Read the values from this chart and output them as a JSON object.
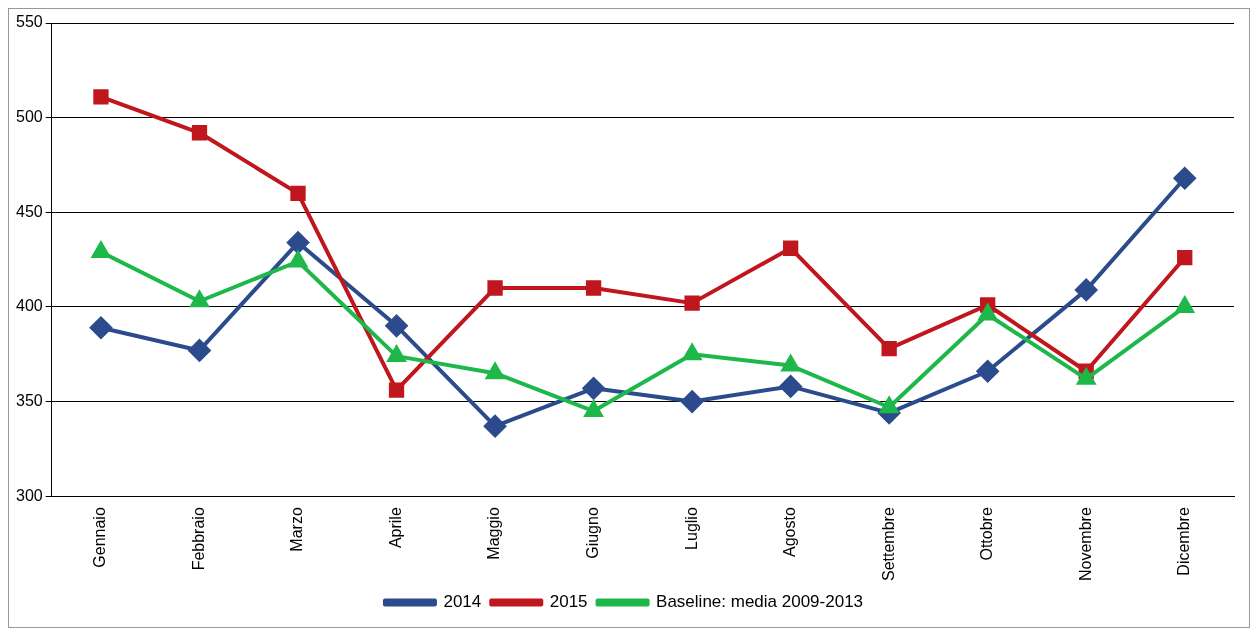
{
  "chart_data": {
    "type": "line",
    "categories": [
      "Gennaio",
      "Febbraio",
      "Marzo",
      "Aprile",
      "Maggio",
      "Giugno",
      "Luglio",
      "Agosto",
      "Settembre",
      "Ottobre",
      "Novembre",
      "Dicembre"
    ],
    "series": [
      {
        "name": "2014",
        "color": "#2b4b8c",
        "marker": "diamond",
        "values": [
          389,
          377,
          434,
          390,
          337,
          357,
          350,
          358,
          344,
          366,
          409,
          468
        ]
      },
      {
        "name": "2015",
        "color": "#c0161e",
        "marker": "square",
        "values": [
          511,
          492,
          460,
          356,
          410,
          410,
          402,
          431,
          378,
          401,
          366,
          426
        ]
      },
      {
        "name": "Baseline: media 2009-2013",
        "color": "#1eb84a",
        "marker": "triangle",
        "values": [
          429,
          403,
          424,
          374,
          365,
          345,
          375,
          369,
          347,
          396,
          362,
          400
        ]
      }
    ],
    "ylim": [
      300,
      550
    ],
    "yticks": [
      300,
      350,
      400,
      450,
      500,
      550
    ],
    "grid": "y",
    "legend": "bottom",
    "line_style": "solid"
  }
}
